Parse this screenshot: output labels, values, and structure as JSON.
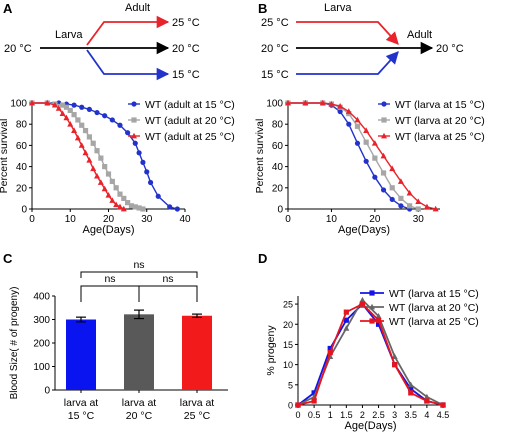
{
  "panels": {
    "A": {
      "letter": "A",
      "diagram": {
        "start_label": "20 °C",
        "stage_label": "Larva",
        "branch_label": "Adult",
        "end_labels": [
          "25 °C",
          "20 °C",
          "15 °C"
        ],
        "colors": [
          "#e8232b",
          "#000000",
          "#2233cc"
        ]
      },
      "chart_data": {
        "type": "line",
        "xlabel": "Age(Days)",
        "ylabel": "Percent survival",
        "xlim": [
          0,
          40
        ],
        "ylim": [
          0,
          100
        ],
        "xticks": [
          0,
          10,
          20,
          30,
          40
        ],
        "yticks": [
          0,
          20,
          40,
          60,
          80,
          100
        ],
        "legend_position": "top-right",
        "series": [
          {
            "name": "WT (adult at 15 °C)",
            "color": "#2233cc",
            "marker": "circle",
            "x": [
              0,
              4,
              7,
              9,
              11,
              13,
              15,
              17,
              19,
              21,
              23,
              25,
              27,
              28,
              29,
              30,
              31,
              33,
              36,
              38
            ],
            "y": [
              100,
              100,
              100,
              99,
              98,
              96,
              94,
              91,
              88,
              84,
              79,
              72,
              62,
              53,
              44,
              35,
              25,
              12,
              2,
              0
            ]
          },
          {
            "name": "WT (adult at 20 °C)",
            "color": "#a6a6a6",
            "marker": "square",
            "x": [
              0,
              4,
              6,
              8,
              9,
              10,
              11,
              12,
              13,
              14,
              15,
              16,
              17,
              18,
              19,
              20,
              21,
              22,
              23,
              24,
              25,
              26,
              27,
              28,
              29
            ],
            "y": [
              100,
              100,
              99,
              98,
              96,
              93,
              89,
              84,
              79,
              74,
              68,
              62,
              55,
              48,
              40,
              33,
              26,
              20,
              14,
              10,
              6,
              3,
              2,
              1,
              0
            ]
          },
          {
            "name": "WT (adult at 25 °C)",
            "color": "#e8232b",
            "marker": "triangle",
            "x": [
              0,
              4,
              6,
              7,
              8,
              9,
              10,
              11,
              12,
              13,
              14,
              15,
              16,
              17,
              18,
              19,
              20,
              21,
              22,
              23,
              24
            ],
            "y": [
              100,
              100,
              98,
              95,
              90,
              86,
              80,
              74,
              67,
              60,
              53,
              46,
              38,
              31,
              25,
              19,
              13,
              8,
              4,
              2,
              0
            ]
          }
        ]
      }
    },
    "B": {
      "letter": "B",
      "diagram": {
        "start_labels": [
          "25 °C",
          "20 °C",
          "15 °C"
        ],
        "stage_label": "Larva",
        "branch_label": "Adult",
        "end_label": "20 °C",
        "colors": [
          "#e8232b",
          "#000000",
          "#2233cc"
        ]
      },
      "chart_data": {
        "type": "line",
        "xlabel": "Age(Days)",
        "ylabel": "Percent survival",
        "xlim": [
          0,
          35
        ],
        "ylim": [
          0,
          100
        ],
        "xticks": [
          0,
          10,
          20,
          30
        ],
        "yticks": [
          0,
          20,
          40,
          60,
          80,
          100
        ],
        "legend_position": "top-right",
        "series": [
          {
            "name": "WT (larva at 15 °C)",
            "color": "#2233cc",
            "marker": "circle",
            "x": [
              0,
              4,
              8,
              10,
              12,
              14,
              16,
              18,
              20,
              22,
              24,
              26,
              28
            ],
            "y": [
              100,
              100,
              100,
              98,
              92,
              80,
              62,
              45,
              30,
              18,
              9,
              3,
              0
            ]
          },
          {
            "name": "WT (larva at 20 °C)",
            "color": "#a6a6a6",
            "marker": "square",
            "x": [
              0,
              4,
              8,
              10,
              12,
              14,
              16,
              18,
              20,
              22,
              24,
              26,
              28,
              30
            ],
            "y": [
              100,
              100,
              100,
              99,
              96,
              90,
              78,
              63,
              48,
              34,
              20,
              10,
              3,
              0
            ]
          },
          {
            "name": "WT (larva at 25 °C)",
            "color": "#e8232b",
            "marker": "triangle",
            "x": [
              0,
              4,
              8,
              10,
              12,
              14,
              16,
              18,
              20,
              22,
              24,
              26,
              28,
              30,
              32,
              34
            ],
            "y": [
              100,
              100,
              100,
              99,
              97,
              92,
              84,
              74,
              62,
              50,
              38,
              26,
              15,
              7,
              2,
              0
            ]
          }
        ]
      }
    },
    "C": {
      "letter": "C",
      "chart_data": {
        "type": "bar",
        "ylabel": "Blood Size( # of progeny)",
        "ylim": [
          0,
          400
        ],
        "yticks": [
          0,
          100,
          200,
          300,
          400
        ],
        "categories": [
          [
            "larva at",
            "15 °C"
          ],
          [
            "larva at",
            "20 °C"
          ],
          [
            "larva at",
            "25 °C"
          ]
        ],
        "values": [
          300,
          322,
          316
        ],
        "errors": [
          10,
          18,
          7
        ],
        "colors": [
          "#0a14f0",
          "#595959",
          "#f21a1a"
        ],
        "significance": [
          {
            "from": 0,
            "to": 1,
            "label": "ns",
            "level": 1
          },
          {
            "from": 1,
            "to": 2,
            "label": "ns",
            "level": 1
          },
          {
            "from": 0,
            "to": 2,
            "label": "ns",
            "level": 2
          }
        ]
      }
    },
    "D": {
      "letter": "D",
      "chart_data": {
        "type": "line",
        "xlabel": "Age(Days)",
        "ylabel": "% progeny",
        "xlim": [
          0,
          4.5
        ],
        "ylim": [
          0,
          27
        ],
        "xticks": [
          0,
          0.5,
          1,
          1.5,
          2,
          2.5,
          3,
          3.5,
          4,
          4.5
        ],
        "yticks": [
          0,
          5,
          10,
          15,
          20,
          25
        ],
        "legend_position": "top-right",
        "series": [
          {
            "name": "WT (larva at 15 °C)",
            "color": "#1414e6",
            "marker": "square",
            "x": [
              0,
              0.5,
              1,
              1.5,
              2,
              2.5,
              3,
              3.5,
              4,
              4.5
            ],
            "y": [
              0,
              3,
              14,
              21,
              25,
              20,
              10,
              4,
              1,
              0
            ]
          },
          {
            "name": "WT (larva at 20 °C)",
            "color": "#666666",
            "marker": "triangle",
            "x": [
              0,
              0.5,
              1,
              1.5,
              2,
              2.5,
              3,
              3.5,
              4,
              4.5
            ],
            "y": [
              0,
              2,
              12,
              19,
              26,
              22,
              12,
              5,
              2,
              0
            ]
          },
          {
            "name": "WT (larva at 25 °C)",
            "color": "#e6141e",
            "marker": "square",
            "x": [
              0,
              0.5,
              1,
              1.5,
              2,
              2.5,
              3,
              3.5,
              4,
              4.5
            ],
            "y": [
              0,
              1,
              13,
              23,
              25,
              21,
              10,
              3,
              1,
              0
            ]
          }
        ]
      }
    }
  }
}
